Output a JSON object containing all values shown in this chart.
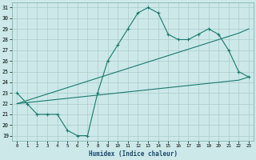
{
  "xlabel": "Humidex (Indice chaleur)",
  "x": [
    0,
    1,
    2,
    3,
    4,
    5,
    6,
    7,
    8,
    9,
    10,
    11,
    12,
    13,
    14,
    15,
    16,
    17,
    18,
    19,
    20,
    21,
    22,
    23
  ],
  "zigzag": [
    23,
    22,
    21,
    21,
    21,
    19.5,
    19,
    19,
    23,
    26,
    27.5,
    29,
    30.5,
    31,
    30.5,
    28.5,
    28,
    28,
    28.5,
    29,
    28.5,
    27,
    25,
    24.5
  ],
  "upper_diag": [
    22,
    22.3,
    22.6,
    22.9,
    23.2,
    23.5,
    23.8,
    24.1,
    24.4,
    24.7,
    25.0,
    25.3,
    25.6,
    25.9,
    26.2,
    26.5,
    26.8,
    27.1,
    27.4,
    27.7,
    28.0,
    28.3,
    28.6,
    29.0
  ],
  "lower_diag": [
    22,
    22.1,
    22.2,
    22.3,
    22.4,
    22.5,
    22.6,
    22.7,
    22.8,
    22.9,
    23.0,
    23.1,
    23.2,
    23.3,
    23.4,
    23.5,
    23.6,
    23.7,
    23.8,
    23.9,
    24.0,
    24.1,
    24.2,
    24.5
  ],
  "line_color": "#1a7a6e",
  "bg_color": "#cce8e8",
  "grid_color": "#aacccc",
  "ylim": [
    18.5,
    31.5
  ],
  "xlim": [
    -0.5,
    23.5
  ],
  "yticks": [
    19,
    20,
    21,
    22,
    23,
    24,
    25,
    26,
    27,
    28,
    29,
    30,
    31
  ],
  "xticks": [
    0,
    1,
    2,
    3,
    4,
    5,
    6,
    7,
    8,
    9,
    10,
    11,
    12,
    13,
    14,
    15,
    16,
    17,
    18,
    19,
    20,
    21,
    22,
    23
  ]
}
